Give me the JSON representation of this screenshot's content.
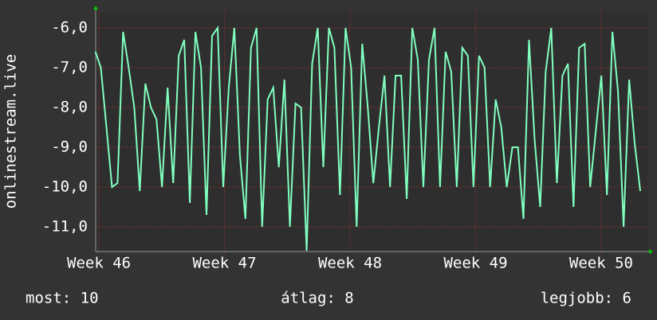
{
  "chart_data": {
    "type": "line",
    "y_label": "onlinestream.live",
    "x": [
      -0.2,
      0.11,
      0.42,
      0.73,
      1.04,
      1.35,
      1.66,
      1.97,
      2.28,
      2.59,
      2.9,
      3.21,
      3.52,
      3.83,
      4.14,
      4.45,
      4.76,
      5.07,
      5.38,
      5.69,
      6,
      6.31,
      6.62,
      6.93,
      7.24,
      7.55,
      7.86,
      8.17,
      8.48,
      8.79,
      9.1,
      9.41,
      9.72,
      10.03,
      10.34,
      10.65,
      10.96,
      11.27,
      11.58,
      11.89,
      12.2,
      12.51,
      12.82,
      13.13,
      13.44,
      13.75,
      14.06,
      14.37,
      14.68,
      14.99,
      15.3,
      15.61,
      15.92,
      16.23,
      16.54,
      16.85,
      17.16,
      17.47,
      17.78,
      18.09,
      18.4,
      18.71,
      19.02,
      19.33,
      19.64,
      19.95,
      20.26,
      20.57,
      20.88,
      21.19,
      21.5,
      21.81,
      22.12,
      22.43,
      22.74,
      23.05,
      23.36,
      23.67,
      23.98,
      24.29,
      24.6,
      24.91,
      25.22,
      25.53,
      25.84,
      26.15,
      26.46,
      26.77,
      27.08,
      27.39,
      27.7,
      28.01,
      28.32,
      28.63,
      28.94,
      29.25,
      29.56,
      29.87,
      30.18
    ],
    "series": [
      {
        "color": "#80ffbf",
        "values": [
          -6.6,
          -7.0,
          -8.5,
          -10.0,
          -9.9,
          -6.1,
          -7.0,
          -8.0,
          -10.1,
          -7.4,
          -8.0,
          -8.3,
          -10.0,
          -7.5,
          -9.9,
          -6.7,
          -6.3,
          -10.4,
          -6.1,
          -7.0,
          -10.7,
          -6.2,
          -6.0,
          -10.0,
          -7.5,
          -6.0,
          -9.2,
          -10.8,
          -6.5,
          -6.0,
          -11.0,
          -7.8,
          -7.5,
          -9.5,
          -7.3,
          -11.0,
          -7.9,
          -8.0,
          -11.6,
          -6.9,
          -6.0,
          -9.5,
          -6.0,
          -6.5,
          -10.2,
          -6.0,
          -7.0,
          -11.0,
          -6.4,
          -8.0,
          -9.9,
          -8.5,
          -7.2,
          -10.0,
          -7.2,
          -7.2,
          -10.3,
          -6.0,
          -6.8,
          -10.0,
          -6.8,
          -6.0,
          -10.0,
          -6.6,
          -7.1,
          -10.0,
          -6.5,
          -6.7,
          -10.0,
          -6.7,
          -7.0,
          -10.0,
          -7.8,
          -8.5,
          -10.0,
          -9.0,
          -9.0,
          -10.8,
          -6.3,
          -8.8,
          -10.5,
          -7.1,
          -6.0,
          -9.9,
          -7.2,
          -6.9,
          -10.5,
          -6.5,
          -6.4,
          -10.0,
          -8.6,
          -7.2,
          -10.2,
          -6.1,
          -7.6,
          -11.0,
          -7.3,
          -8.9,
          -10.1
        ]
      }
    ],
    "xlim": [
      -0.18,
      30.58
    ],
    "xticks": [
      {
        "value": 0,
        "label": "Week 46"
      },
      {
        "value": 7,
        "label": "Week 47"
      },
      {
        "value": 14,
        "label": "Week 48"
      },
      {
        "value": 21,
        "label": "Week 49"
      },
      {
        "value": 28,
        "label": "Week 50"
      }
    ],
    "ylim": [
      -11.62,
      -5.6
    ],
    "yticks": [
      {
        "value": -6,
        "label": "-6,0"
      },
      {
        "value": -7,
        "label": "-7,0"
      },
      {
        "value": -8,
        "label": "-8,0"
      },
      {
        "value": -9,
        "label": "-9,0"
      },
      {
        "value": -10,
        "label": "-10,0"
      },
      {
        "value": -11,
        "label": "-11,0"
      }
    ],
    "grid": true,
    "stats": [
      "most: 10",
      "átlag: 8",
      "legjobb: 6"
    ]
  }
}
